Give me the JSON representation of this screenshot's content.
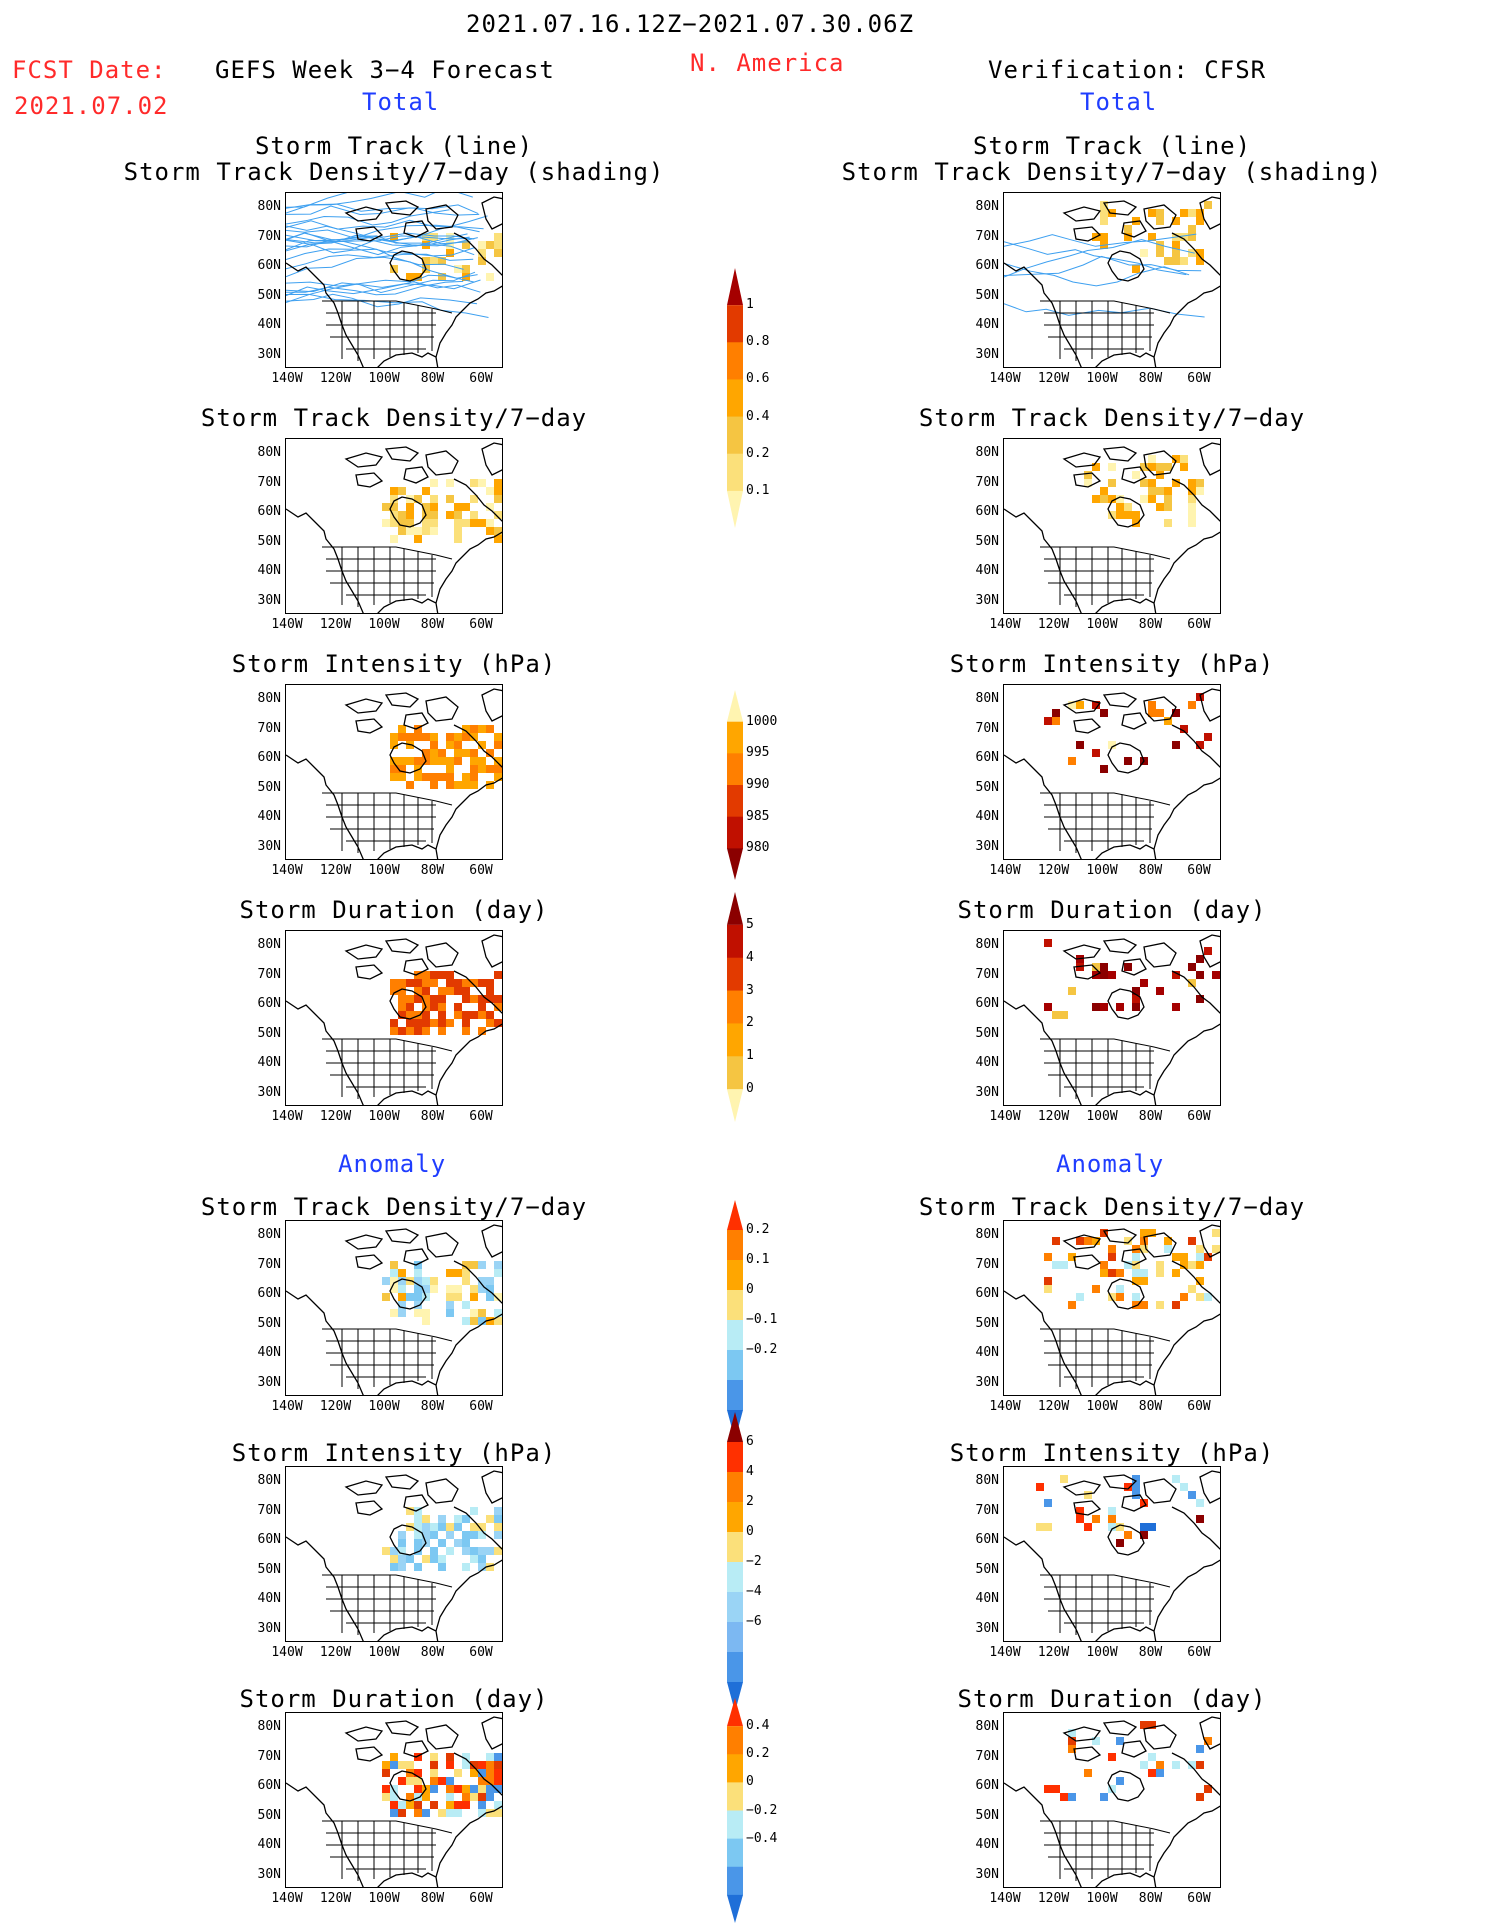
{
  "header": {
    "period": "2021.07.16.12Z−2021.07.30.06Z",
    "fcst_label": "FCST Date:",
    "fcst_date": "2021.07.02",
    "model": "GEFS Week 3−4 Forecast",
    "region": "N. America",
    "verification": "Verification: CFSR"
  },
  "sections": {
    "total_left": "Total",
    "total_right": "Total",
    "anomaly_left": "Anomaly",
    "anomaly_right": "Anomaly"
  },
  "titles": {
    "track_line": "Storm Track (line)",
    "track_shading": "Storm Track Density/7−day (shading)",
    "density": "Storm Track Density/7−day",
    "intensity": "Storm Intensity (hPa)",
    "duration": "Storm Duration (day)"
  },
  "axes": {
    "lat": [
      "80N",
      "70N",
      "60N",
      "50N",
      "40N",
      "30N"
    ],
    "lon": [
      "140W",
      "120W",
      "100W",
      "80W",
      "60W"
    ]
  },
  "colorbars": [
    {
      "id": "density_total",
      "labels": [
        "1",
        "0.8",
        "0.6",
        "0.4",
        "0.2",
        "0.1"
      ],
      "colors": [
        "#a50000",
        "#e23a00",
        "#ff7f00",
        "#ffa600",
        "#f5c542",
        "#fbe07a",
        "#fff4b0"
      ]
    },
    {
      "id": "intensity_total",
      "labels": [
        "1000",
        "995",
        "990",
        "985",
        "980"
      ],
      "colors": [
        "#fff4b0",
        "#ffa600",
        "#ff7f00",
        "#e23a00",
        "#c01000",
        "#8b0000"
      ]
    },
    {
      "id": "duration_total",
      "labels": [
        "5",
        "4",
        "3",
        "2",
        "1",
        "0"
      ],
      "colors": [
        "#8b0000",
        "#c01000",
        "#e23a00",
        "#ff7f00",
        "#ffa600",
        "#f5c542",
        "#fff4b0"
      ]
    },
    {
      "id": "density_anom",
      "labels": [
        "0.2",
        "0.1",
        "0",
        "−0.1",
        "−0.2"
      ],
      "colors": [
        "#ff3000",
        "#ff7f00",
        "#ffa600",
        "#fbe07a",
        "#b8ecf5",
        "#7cc8f2",
        "#4a96e8",
        "#1f6fd8"
      ]
    },
    {
      "id": "intensity_anom",
      "labels": [
        "6",
        "4",
        "2",
        "0",
        "−2",
        "−4",
        "−6"
      ],
      "colors": [
        "#8b0000",
        "#ff3000",
        "#ff7f00",
        "#ffa600",
        "#fbe07a",
        "#b8ecf5",
        "#9ad4f5",
        "#7cb8f2",
        "#4a96e8",
        "#1f6fd8"
      ]
    },
    {
      "id": "duration_anom",
      "labels": [
        "0.4",
        "0.2",
        "0",
        "−0.2",
        "−0.4"
      ],
      "colors": [
        "#ff3000",
        "#ff7f00",
        "#ffa600",
        "#fbe07a",
        "#b8ecf5",
        "#7cc8f2",
        "#4a96e8",
        "#1f6fd8"
      ]
    }
  ],
  "colors": {
    "track_line": "#3ea0f0",
    "map_line": "#000000"
  }
}
